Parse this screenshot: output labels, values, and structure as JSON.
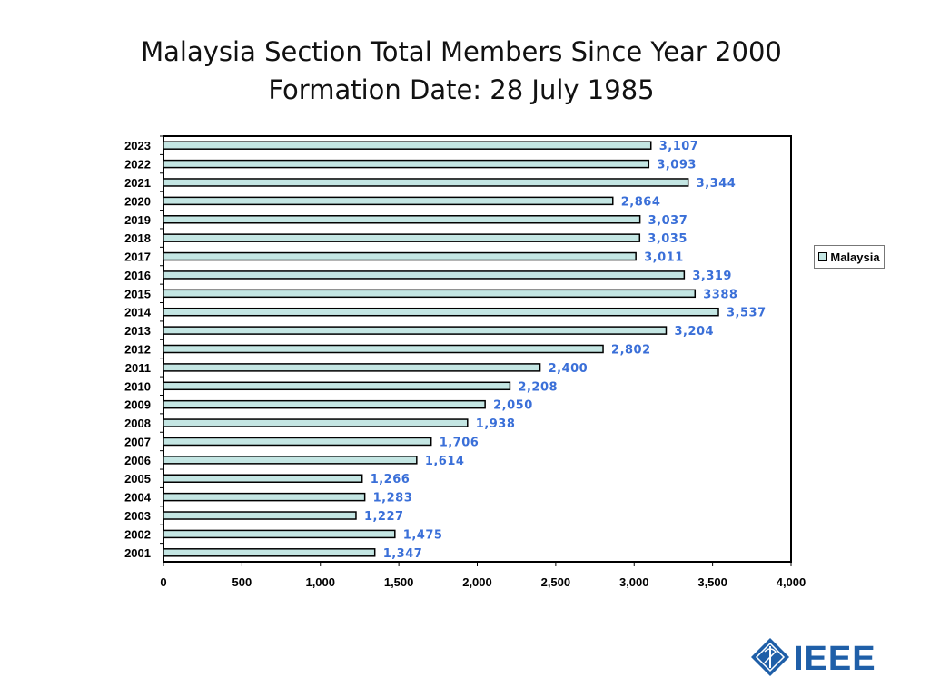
{
  "title_line_1": "Malaysia Section Total Members Since Year 2000",
  "title_line_2": "Formation Date: 28 July 1985",
  "legend_label": "Malaysia",
  "logo_text": "IEEE",
  "colors": {
    "bar_fill": "#c4e6e3",
    "bar_stroke": "#000000",
    "value_label": "#3a6fd8",
    "logo": "#1f5fa8"
  },
  "chart_data": {
    "type": "bar",
    "orientation": "horizontal",
    "categories": [
      "2023",
      "2022",
      "2021",
      "2020",
      "2019",
      "2018",
      "2017",
      "2016",
      "2015",
      "2014",
      "2013",
      "2012",
      "2011",
      "2010",
      "2009",
      "2008",
      "2007",
      "2006",
      "2005",
      "2004",
      "2003",
      "2002",
      "2001"
    ],
    "series": [
      {
        "name": "Malaysia",
        "values": [
          3107,
          3093,
          3344,
          2864,
          3037,
          3035,
          3011,
          3319,
          3388,
          3537,
          3204,
          2802,
          2400,
          2208,
          2050,
          1938,
          1706,
          1614,
          1266,
          1283,
          1227,
          1475,
          1347
        ],
        "labels": [
          "3,107",
          "3,093",
          "3,344",
          "2,864",
          "3,037",
          "3,035",
          "3,011",
          "3,319",
          "3388",
          "3,537",
          "3,204",
          "2,802",
          "2,400",
          "2,208",
          "2,050",
          "1,938",
          "1,706",
          "1,614",
          "1,266",
          "1,283",
          "1,227",
          "1,475",
          "1,347"
        ]
      }
    ],
    "x_ticks": [
      0,
      500,
      1000,
      1500,
      2000,
      2500,
      3000,
      3500,
      4000
    ],
    "x_tick_labels": [
      "0",
      "500",
      "1,000",
      "1,500",
      "2,000",
      "2,500",
      "3,000",
      "3,500",
      "4,000"
    ],
    "xlim": [
      0,
      4000
    ],
    "legend_position": "right",
    "grid": false
  }
}
